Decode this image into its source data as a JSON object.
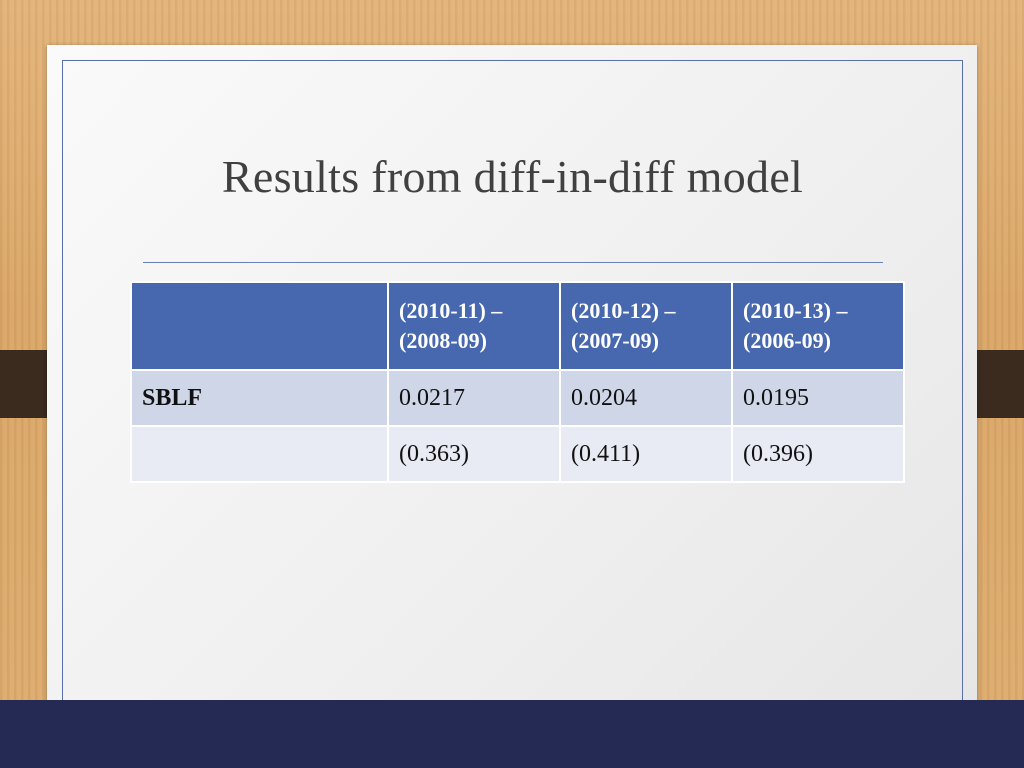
{
  "slide": {
    "title": "Results from diff-in-diff model"
  },
  "table": {
    "header": [
      "",
      "(2010-11) – (2008-09)",
      "(2010-12) – (2007-09)",
      "(2010-13) – (2006-09)"
    ],
    "rows": [
      {
        "label": "SBLF",
        "values": [
          "0.0217",
          "0.0204",
          "0.0195"
        ]
      },
      {
        "label": "",
        "values": [
          "(0.363)",
          "(0.411)",
          "(0.396)"
        ]
      }
    ]
  },
  "colors": {
    "header_fill": "#4767ae",
    "row1_fill": "#cfd6e8",
    "row2_fill": "#e8ebf3",
    "bottom_bar": "#252a55",
    "frame_line": "#5a6fa8"
  }
}
